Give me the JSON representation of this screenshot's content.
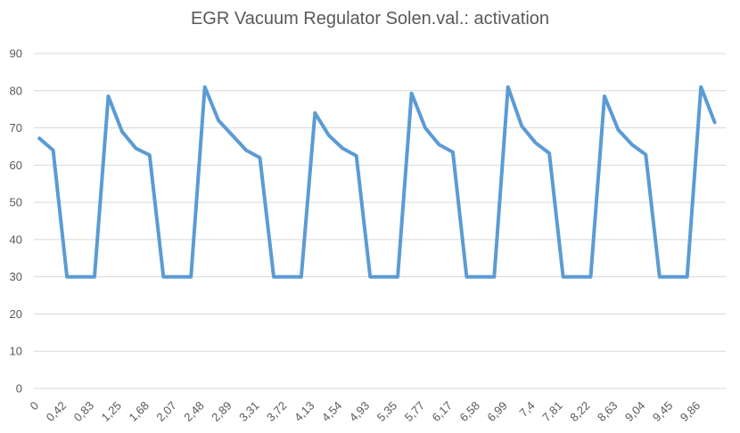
{
  "chart_data": {
    "type": "line",
    "title": "EGR Vacuum Regulator Solen.val.: activation",
    "xlabel": "",
    "ylabel": "",
    "ylim": [
      0,
      90
    ],
    "yticks": [
      0,
      10,
      20,
      30,
      40,
      50,
      60,
      70,
      80,
      90
    ],
    "grid": true,
    "legend": "none",
    "color": "#5b9bd5",
    "x": [
      "0",
      "",
      "0,42",
      "",
      "0,83",
      "",
      "1,25",
      "",
      "1,68",
      "",
      "2,07",
      "",
      "2,48",
      "",
      "2,89",
      "",
      "3,31",
      "",
      "3,72",
      "",
      "4,13",
      "",
      "4,54",
      "",
      "4,93",
      "",
      "5,35",
      "",
      "5,77",
      "",
      "6,17",
      "",
      "6,58",
      "",
      "6,99",
      "",
      "7,4",
      "",
      "7,81",
      "",
      "8,22",
      "",
      "8,63",
      "",
      "9,04",
      "",
      "9,45",
      "",
      "9,86",
      ""
    ],
    "series": [
      {
        "values": [
          67.2,
          64,
          30,
          30,
          30,
          78.5,
          69,
          64.5,
          62.7,
          30,
          30,
          30,
          81,
          72,
          68,
          64,
          62,
          30,
          30,
          30,
          74,
          68,
          64.5,
          62.5,
          30,
          30,
          30,
          79.3,
          70,
          65.5,
          63.5,
          30,
          30,
          30,
          81,
          70.5,
          66,
          63.2,
          30,
          30,
          30,
          78.5,
          69.5,
          65.5,
          62.8,
          30,
          30,
          30,
          81,
          71.5
        ]
      }
    ]
  }
}
